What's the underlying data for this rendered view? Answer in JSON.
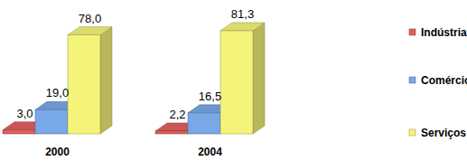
{
  "chart_data": {
    "type": "bar",
    "categories": [
      "2000",
      "2004"
    ],
    "series": [
      {
        "name": "Indústria",
        "color": "#e06060",
        "values": [
          3.0,
          2.2
        ],
        "value_labels": [
          "3,0",
          "2,2"
        ]
      },
      {
        "name": "Comércio",
        "color": "#78a8e8",
        "values": [
          19.0,
          16.5
        ],
        "value_labels": [
          "19,0",
          "16,5"
        ]
      },
      {
        "name": "Serviços",
        "color": "#f4f47a",
        "values": [
          78.0,
          81.3
        ],
        "value_labels": [
          "78,0",
          "81,3"
        ]
      }
    ],
    "data_labels": true,
    "tick_labels": false,
    "legend": "right",
    "grid": false
  }
}
